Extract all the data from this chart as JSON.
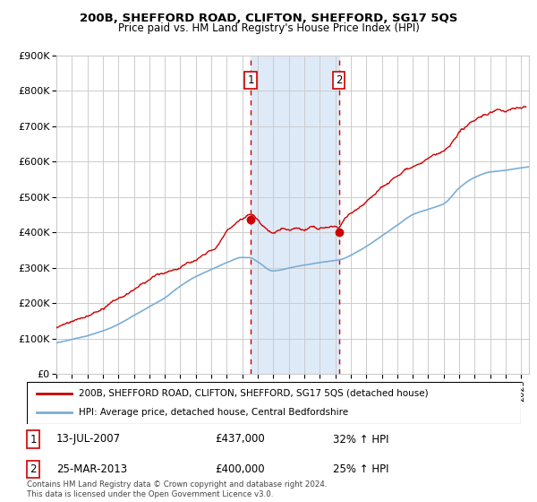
{
  "title": "200B, SHEFFORD ROAD, CLIFTON, SHEFFORD, SG17 5QS",
  "subtitle": "Price paid vs. HM Land Registry's House Price Index (HPI)",
  "ytick_values": [
    0,
    100000,
    200000,
    300000,
    400000,
    500000,
    600000,
    700000,
    800000,
    900000
  ],
  "ylim": [
    0,
    900000
  ],
  "xlim_start": 1995.0,
  "xlim_end": 2025.5,
  "legend_line1": "200B, SHEFFORD ROAD, CLIFTON, SHEFFORD, SG17 5QS (detached house)",
  "legend_line2": "HPI: Average price, detached house, Central Bedfordshire",
  "sale1_label": "1",
  "sale1_date": "13-JUL-2007",
  "sale1_price": "£437,000",
  "sale1_hpi": "32% ↑ HPI",
  "sale1_x": 2007.54,
  "sale1_y": 437000,
  "sale2_label": "2",
  "sale2_date": "25-MAR-2013",
  "sale2_price": "£400,000",
  "sale2_hpi": "25% ↑ HPI",
  "sale2_x": 2013.23,
  "sale2_y": 400000,
  "price_line_color": "#cc0000",
  "hpi_line_color": "#7aaed6",
  "shade_color": "#deeaf7",
  "grid_color": "#cccccc",
  "footnote": "Contains HM Land Registry data © Crown copyright and database right 2024.\nThis data is licensed under the Open Government Licence v3.0.",
  "background_color": "#ffffff",
  "sale_marker_color": "#cc0000",
  "sale_vline_color": "#cc0000"
}
